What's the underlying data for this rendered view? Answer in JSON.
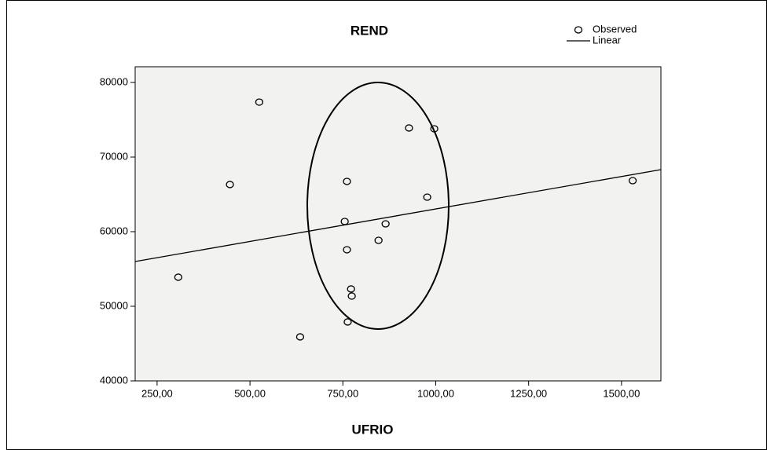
{
  "chart_data": {
    "type": "scatter",
    "title": "REND",
    "x_label": "UFRIO",
    "xlim": [
      191,
      1606
    ],
    "ylim": [
      40000,
      82105
    ],
    "xticks": [
      {
        "value": 250,
        "label": "250,00"
      },
      {
        "value": 500,
        "label": "500,00"
      },
      {
        "value": 750,
        "label": "750,00"
      },
      {
        "value": 1000,
        "label": "1000,00"
      },
      {
        "value": 1250,
        "label": "1250,00"
      },
      {
        "value": 1500,
        "label": "1500,00"
      }
    ],
    "yticks": [
      40000,
      50000,
      60000,
      70000,
      80000
    ],
    "series": [
      {
        "name": "Observed",
        "color": "#000000",
        "x": [
          525,
          446,
          307,
          635,
          928,
          996,
          761,
          977,
          755,
          865,
          761,
          846,
          772,
          774,
          763,
          1530
        ],
        "values": [
          77370,
          66320,
          53900,
          45900,
          73900,
          73790,
          66740,
          64630,
          61370,
          61050,
          57580,
          58840,
          52320,
          51370,
          47900,
          66840
        ]
      },
      {
        "name": "Linear",
        "color": "#000000",
        "x": [
          191,
          1606
        ],
        "values": [
          56000,
          68320
        ]
      }
    ]
  }
}
